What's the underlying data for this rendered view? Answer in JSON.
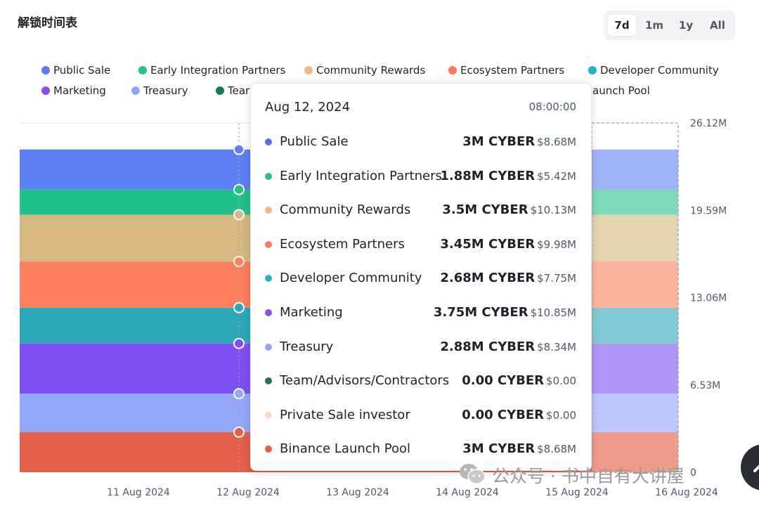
{
  "title": "解锁时间表",
  "range_buttons": [
    {
      "label": "7d",
      "active": true
    },
    {
      "label": "1m",
      "active": false
    },
    {
      "label": "1y",
      "active": false
    },
    {
      "label": "All",
      "active": false
    }
  ],
  "legend": [
    {
      "label": "Public Sale",
      "color": "#5b7cf5"
    },
    {
      "label": "Early Integration Partners",
      "color": "#22c38e"
    },
    {
      "label": "Community Rewards",
      "color": "#f0b98a"
    },
    {
      "label": "Ecosystem Partners",
      "color": "#fa7a5c"
    },
    {
      "label": "Developer Community",
      "color": "#1fb3c9"
    },
    {
      "label": "Marketing",
      "color": "#8a4cf0"
    },
    {
      "label": "Treasury",
      "color": "#93a6f7"
    },
    {
      "label": "Tear",
      "color": "#157a50"
    },
    {
      "label": "aunch Pool",
      "color": "#e45e44"
    }
  ],
  "tooltip": {
    "date": "Aug 12, 2024",
    "time": "08:00:00",
    "rows": [
      {
        "name": "Public Sale",
        "amount": "3M CYBER",
        "usd": "$8.68M",
        "color": "#4f73f0"
      },
      {
        "name": "Early Integration Partners",
        "amount": "1.88M CYBER",
        "usd": "$5.42M",
        "color": "#22c38e"
      },
      {
        "name": "Community Rewards",
        "amount": "3.5M CYBER",
        "usd": "$10.13M",
        "color": "#f0b98a"
      },
      {
        "name": "Ecosystem Partners",
        "amount": "3.45M CYBER",
        "usd": "$9.98M",
        "color": "#fa7a5c"
      },
      {
        "name": "Developer Community",
        "amount": "2.68M CYBER",
        "usd": "$7.75M",
        "color": "#1fb3c9"
      },
      {
        "name": "Marketing",
        "amount": "3.75M CYBER",
        "usd": "$10.85M",
        "color": "#8a4cf0"
      },
      {
        "name": "Treasury",
        "amount": "2.88M CYBER",
        "usd": "$8.34M",
        "color": "#93a6f7"
      },
      {
        "name": "Team/Advisors/Contractors",
        "amount": "0.00 CYBER",
        "usd": "$0.00",
        "color": "#157a50"
      },
      {
        "name": "Private Sale investor",
        "amount": "0.00 CYBER",
        "usd": "$0.00",
        "color": "#f9dcc8"
      },
      {
        "name": "Binance Launch Pool",
        "amount": "3M CYBER",
        "usd": "$8.68M",
        "color": "#e45e44"
      }
    ]
  },
  "watermark": "公众号 · 书中自有大讲屋",
  "chart_data": {
    "type": "area",
    "x": [
      "11 Aug 2024",
      "12 Aug 2024",
      "13 Aug 2024",
      "14 Aug 2024",
      "15 Aug 2024",
      "16 Aug 2024"
    ],
    "x_ticks": [
      "11 Aug 2024",
      "12 Aug 2024",
      "13 Aug 2024",
      "14 Aug 2024",
      "15 Aug 2024",
      "16 Aug 2024"
    ],
    "y_ticks": [
      "0",
      "6.53M",
      "13.06M",
      "19.59M",
      "26.12M"
    ],
    "y_tick_values": [
      0,
      6530000,
      13060000,
      19590000,
      26120000
    ],
    "ylim": [
      0,
      26120000
    ],
    "stacked": true,
    "hover_x": "12 Aug 2024",
    "series": [
      {
        "name": "Binance Launch Pool",
        "value": 3000000,
        "color": "#e5604a",
        "end_color": "#f09c8c"
      },
      {
        "name": "Treasury",
        "value": 2880000,
        "color": "#93a6f7",
        "end_color": "#bcc8fb"
      },
      {
        "name": "Marketing",
        "value": 3750000,
        "color": "#7e4ff2",
        "end_color": "#b296f7"
      },
      {
        "name": "Developer Community",
        "value": 2680000,
        "color": "#2ea7bb",
        "end_color": "#84cad6"
      },
      {
        "name": "Ecosystem Partners",
        "value": 3450000,
        "color": "#fe7f5e",
        "end_color": "#fcb49f"
      },
      {
        "name": "Community Rewards",
        "value": 3500000,
        "color": "#d6b880",
        "end_color": "#e4d3b1"
      },
      {
        "name": "Early Integration Partners",
        "value": 1880000,
        "color": "#22c08d",
        "end_color": "#7fd8bc"
      },
      {
        "name": "Public Sale",
        "value": 3000000,
        "color": "#5c7ff4",
        "end_color": "#a0b2f8"
      }
    ]
  }
}
